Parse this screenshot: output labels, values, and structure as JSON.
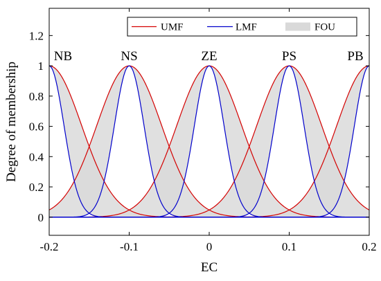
{
  "chart_data": {
    "type": "line",
    "title": "",
    "xlabel": "EC",
    "ylabel": "Degree of membership",
    "xlim": [
      -0.2,
      0.2
    ],
    "ylim": [
      -0.12,
      1.38
    ],
    "xticks": [
      "-0.2",
      "-0.1",
      "0",
      "0.1",
      "0.2"
    ],
    "yticks": [
      "0",
      "0.2",
      "0.4",
      "0.6",
      "0.8",
      "1",
      "1.2"
    ],
    "grid": false,
    "legend_position": "top-right",
    "legend": [
      {
        "label": "UMF",
        "kind": "line",
        "color": "#d40000"
      },
      {
        "label": "LMF",
        "kind": "line",
        "color": "#0000cc"
      },
      {
        "label": "FOU",
        "kind": "patch",
        "color": "#d9d9d9"
      }
    ],
    "membership_functions": [
      {
        "name": "NB",
        "center": -0.2
      },
      {
        "name": "NS",
        "center": -0.1
      },
      {
        "name": "ZE",
        "center": 0
      },
      {
        "name": "PS",
        "center": 0.1
      },
      {
        "name": "PB",
        "center": 0.2
      }
    ],
    "series": [
      {
        "name": "UMF",
        "shape": "gaussian",
        "sigma": 0.0405,
        "peak": 1,
        "color": "#d40000"
      },
      {
        "name": "LMF",
        "shape": "gaussian",
        "sigma": 0.0185,
        "peak": 1,
        "color": "#0000cc"
      }
    ],
    "fou_color": "#d9d9d9",
    "overlap_color": "#b5b5b5"
  }
}
